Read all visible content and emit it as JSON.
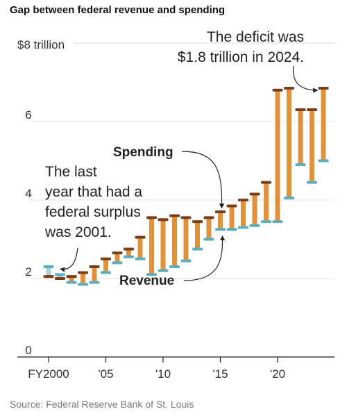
{
  "chart_data": {
    "type": "dumbbell",
    "title": "Gap between federal revenue and spending",
    "source": "Source: Federal Reserve Bank of St. Louis",
    "unit": "trillion",
    "ylim": [
      0,
      8
    ],
    "y_ticks": [
      {
        "value": 8,
        "label": "$8 trillion"
      },
      {
        "value": 6,
        "label": "6"
      },
      {
        "value": 4,
        "label": "4"
      },
      {
        "value": 2,
        "label": "2"
      },
      {
        "value": 0,
        "label": "0"
      }
    ],
    "x_ticks": [
      {
        "value": 2000,
        "label": "FY2000"
      },
      {
        "value": 2005,
        "label": "'05"
      },
      {
        "value": 2010,
        "label": "'10"
      },
      {
        "value": 2015,
        "label": "'15"
      },
      {
        "value": 2020,
        "label": "'20"
      }
    ],
    "grid": true,
    "x": [
      2000,
      2001,
      2002,
      2003,
      2004,
      2005,
      2006,
      2007,
      2008,
      2009,
      2010,
      2011,
      2012,
      2013,
      2014,
      2015,
      2016,
      2017,
      2018,
      2019,
      2020,
      2021,
      2022,
      2023,
      2024
    ],
    "series": [
      {
        "name": "Spending",
        "color": "#7a3d18",
        "values": [
          2.05,
          2.0,
          2.05,
          2.15,
          2.3,
          2.5,
          2.65,
          2.75,
          3.05,
          3.55,
          3.5,
          3.6,
          3.55,
          3.45,
          3.55,
          3.7,
          3.85,
          4.0,
          4.15,
          4.45,
          6.8,
          6.85,
          6.3,
          6.3,
          6.85
        ]
      },
      {
        "name": "Revenue",
        "color": "#5aaec0",
        "values": [
          2.3,
          2.1,
          1.9,
          1.85,
          1.9,
          2.15,
          2.4,
          2.55,
          2.5,
          2.1,
          2.2,
          2.3,
          2.45,
          2.75,
          3.0,
          3.25,
          3.25,
          3.3,
          3.35,
          3.45,
          3.45,
          4.05,
          4.9,
          4.45,
          5.0
        ]
      }
    ],
    "bar_color_deficit": "#e0913a",
    "bar_color_surplus": "#a8cfd8",
    "annotations": [
      {
        "id": "spending",
        "lines": [
          "Spending"
        ]
      },
      {
        "id": "revenue",
        "lines": [
          "Revenue"
        ]
      },
      {
        "id": "surplus",
        "lines": [
          "The last",
          "year that had a",
          "federal surplus",
          "was 2001."
        ]
      },
      {
        "id": "deficit",
        "lines": [
          "The deficit was",
          "$1.8 trillion in 2024."
        ]
      }
    ]
  }
}
